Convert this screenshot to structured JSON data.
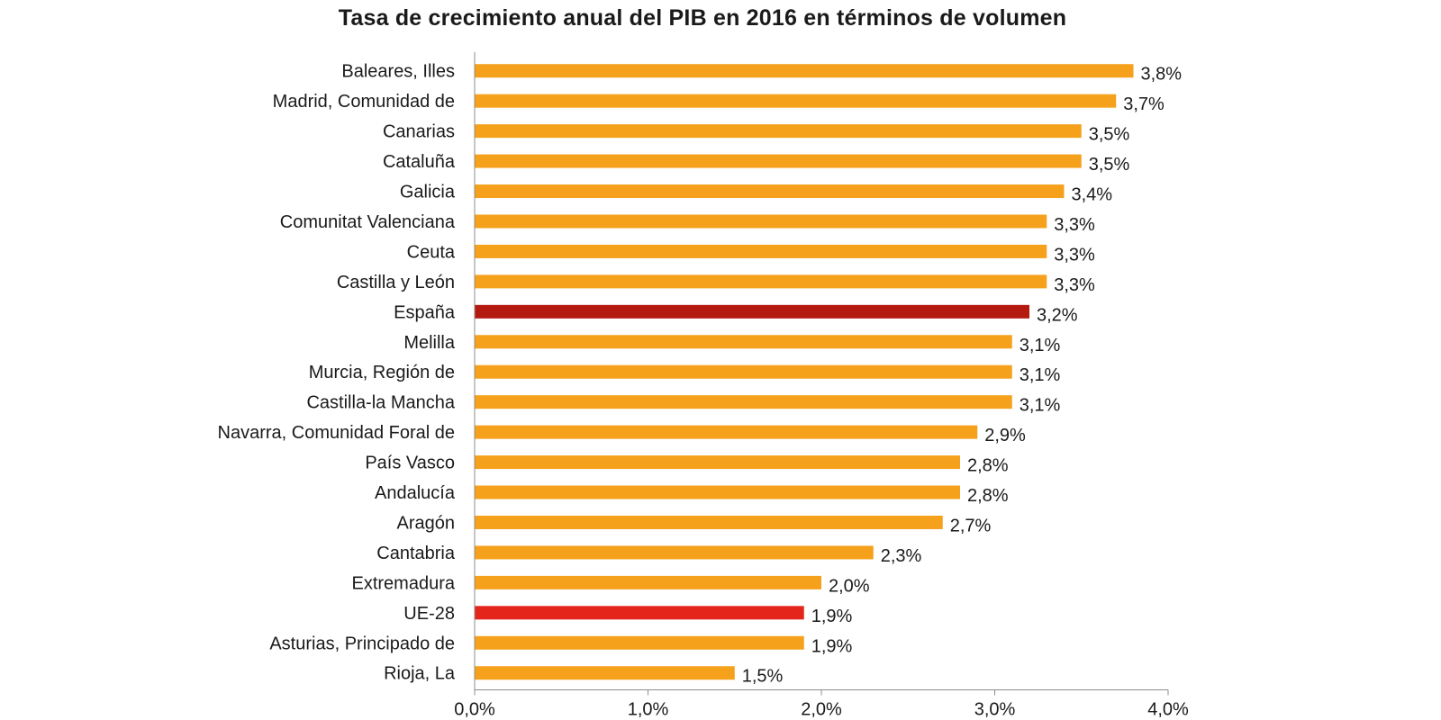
{
  "chart_data": {
    "type": "bar",
    "orientation": "horizontal",
    "title": "Tasa de crecimiento anual del PIB en 2016 en términos de volumen",
    "xlabel": "",
    "ylabel": "",
    "xlim": [
      0,
      4
    ],
    "x_ticks": [
      "0,0%",
      "1,0%",
      "2,0%",
      "3,0%",
      "4,0%"
    ],
    "grid": false,
    "legend": "none",
    "colors": {
      "default": "#F5A11C",
      "espana": "#B51A10",
      "ue28": "#E3251C"
    },
    "categories": [
      "Baleares, Illes",
      "Madrid, Comunidad de",
      "Canarias",
      "Cataluña",
      "Galicia",
      "Comunitat Valenciana",
      "Ceuta",
      "Castilla y León",
      "España",
      "Melilla",
      "Murcia, Región de",
      "Castilla-la Mancha",
      "Navarra, Comunidad Foral de",
      "País Vasco",
      "Andalucía",
      "Aragón",
      "Cantabria",
      "Extremadura",
      "UE-28",
      "Asturias, Principado de",
      "Rioja, La"
    ],
    "values": [
      3.8,
      3.7,
      3.5,
      3.5,
      3.4,
      3.3,
      3.3,
      3.3,
      3.2,
      3.1,
      3.1,
      3.1,
      2.9,
      2.8,
      2.8,
      2.7,
      2.3,
      2.0,
      1.9,
      1.9,
      1.5
    ],
    "value_labels": [
      "3,8%",
      "3,7%",
      "3,5%",
      "3,5%",
      "3,4%",
      "3,3%",
      "3,3%",
      "3,3%",
      "3,2%",
      "3,1%",
      "3,1%",
      "3,1%",
      "2,9%",
      "2,8%",
      "2,8%",
      "2,7%",
      "2,3%",
      "2,0%",
      "1,9%",
      "1,9%",
      "1,5%"
    ],
    "bar_colors": [
      "default",
      "default",
      "default",
      "default",
      "default",
      "default",
      "default",
      "default",
      "espana",
      "default",
      "default",
      "default",
      "default",
      "default",
      "default",
      "default",
      "default",
      "default",
      "ue28",
      "default",
      "default"
    ]
  }
}
